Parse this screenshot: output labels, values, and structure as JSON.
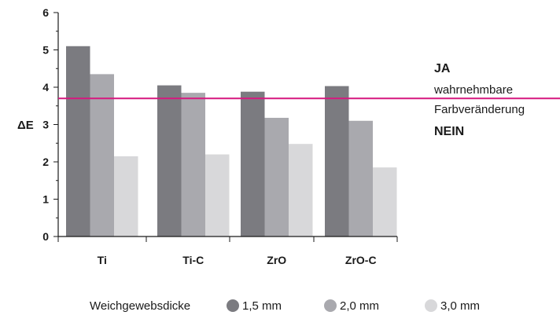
{
  "chart_data": {
    "type": "bar",
    "categories": [
      "Ti",
      "Ti-C",
      "ZrO",
      "ZrO-C"
    ],
    "series": [
      {
        "name": "1,5 mm",
        "values": [
          5.1,
          4.05,
          3.88,
          4.03
        ],
        "color": "#7b7b80"
      },
      {
        "name": "2,0 mm",
        "values": [
          4.35,
          3.85,
          3.18,
          3.1
        ],
        "color": "#a9a9ae"
      },
      {
        "name": "3,0 mm",
        "values": [
          2.15,
          2.2,
          2.48,
          1.85
        ],
        "color": "#d8d8da"
      }
    ],
    "ylabel": "ΔE",
    "ylim": [
      0,
      6
    ],
    "yticks": [
      "0",
      "1",
      "2",
      "3",
      "4",
      "5",
      "6"
    ],
    "threshold": {
      "value": 3.7,
      "color": "#d6187f"
    },
    "annotations": {
      "above": "JA",
      "line1": "wahrnehmbare",
      "line2": "Farbveränderung",
      "below": "NEIN"
    },
    "legend": {
      "title": "Weichgewebsdicke",
      "placement": "bottom"
    },
    "grid": false
  }
}
